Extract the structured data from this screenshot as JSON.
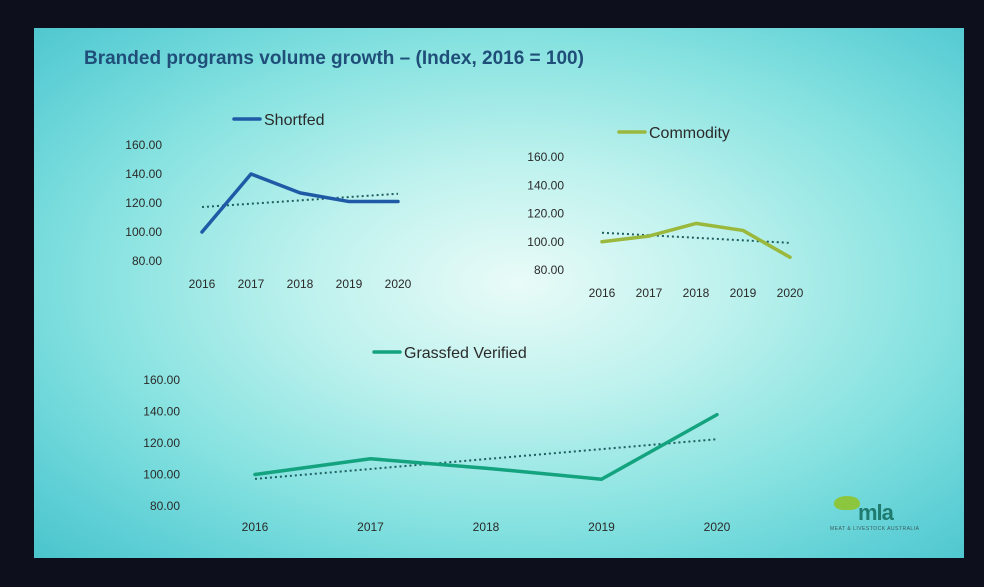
{
  "slide": {
    "title": "Branded programs volume growth – (Index, 2016 = 100)"
  },
  "logo": {
    "text": "mla",
    "tagline": "MEAT & LIVESTOCK AUSTRALIA"
  },
  "colors": {
    "shortfed": "#1f5aa6",
    "commodity": "#9ab83c",
    "grassfed": "#14a37f",
    "trend": "#1e5e60",
    "title": "#1f4e79"
  },
  "chart_data": [
    {
      "type": "line",
      "title": "",
      "xlabel": "",
      "ylabel": "",
      "categories": [
        "2016",
        "2017",
        "2018",
        "2019",
        "2020"
      ],
      "yticks": [
        "80.00",
        "100.00",
        "120.00",
        "140.00",
        "160.00"
      ],
      "ylim": [
        80,
        160
      ],
      "grid": false,
      "legend": "top",
      "series": [
        {
          "name": "Shortfed",
          "values": [
            100,
            140,
            127,
            121,
            121
          ],
          "color": "#1f5aa6",
          "trendline": true
        }
      ]
    },
    {
      "type": "line",
      "title": "",
      "xlabel": "",
      "ylabel": "",
      "categories": [
        "2016",
        "2017",
        "2018",
        "2019",
        "2020"
      ],
      "yticks": [
        "80.00",
        "100.00",
        "120.00",
        "140.00",
        "160.00"
      ],
      "ylim": [
        80,
        160
      ],
      "grid": false,
      "legend": "top",
      "series": [
        {
          "name": "Commodity",
          "values": [
            100,
            104,
            113,
            108,
            89
          ],
          "color": "#9ab83c",
          "trendline": true
        }
      ]
    },
    {
      "type": "line",
      "title": "",
      "xlabel": "",
      "ylabel": "",
      "categories": [
        "2016",
        "2017",
        "2018",
        "2019",
        "2020"
      ],
      "yticks": [
        "80.00",
        "100.00",
        "120.00",
        "140.00",
        "160.00"
      ],
      "ylim": [
        80,
        160
      ],
      "grid": false,
      "legend": "top",
      "series": [
        {
          "name": "Grassfed Verified",
          "values": [
            100,
            110,
            104,
            97,
            138
          ],
          "color": "#14a37f",
          "trendline": true
        }
      ]
    }
  ]
}
